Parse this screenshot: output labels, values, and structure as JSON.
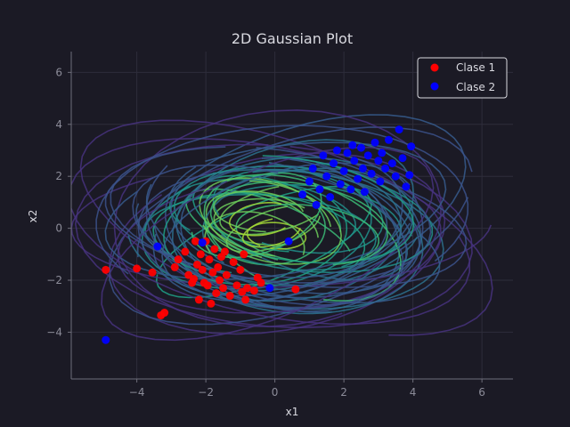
{
  "chart_data": {
    "type": "scatter",
    "title": "2D Gaussian Plot",
    "xlabel": "x1",
    "ylabel": "x2",
    "xlim": [
      -5.9,
      6.9
    ],
    "ylim": [
      -5.8,
      6.8
    ],
    "xticks": [
      "−4",
      "−2",
      "0",
      "2",
      "4",
      "6"
    ],
    "xtick_values": [
      -4,
      -2,
      0,
      2,
      4,
      6
    ],
    "yticks": [
      "−4",
      "−2",
      "0",
      "2",
      "4",
      "6"
    ],
    "ytick_values": [
      -4,
      -2,
      0,
      2,
      4,
      6
    ],
    "grid": true,
    "legend_position": "top-right",
    "series": [
      {
        "name": "Clase 1",
        "color": "#ff0000",
        "points": [
          [
            -4.9,
            -1.6
          ],
          [
            -4.0,
            -1.55
          ],
          [
            -3.55,
            -1.7
          ],
          [
            -3.3,
            -3.35
          ],
          [
            -3.2,
            -3.25
          ],
          [
            -2.9,
            -1.5
          ],
          [
            -2.8,
            -1.2
          ],
          [
            -2.6,
            -0.9
          ],
          [
            -2.5,
            -1.8
          ],
          [
            -2.4,
            -2.1
          ],
          [
            -2.35,
            -1.95
          ],
          [
            -2.3,
            -0.5
          ],
          [
            -2.25,
            -1.4
          ],
          [
            -2.2,
            -2.75
          ],
          [
            -2.15,
            -1.0
          ],
          [
            -2.1,
            -1.6
          ],
          [
            -2.05,
            -2.1
          ],
          [
            -2.0,
            -0.5
          ],
          [
            -1.95,
            -2.2
          ],
          [
            -1.9,
            -1.2
          ],
          [
            -1.85,
            -2.9
          ],
          [
            -1.8,
            -1.7
          ],
          [
            -1.75,
            -0.8
          ],
          [
            -1.7,
            -2.5
          ],
          [
            -1.65,
            -1.5
          ],
          [
            -1.6,
            -2.0
          ],
          [
            -1.55,
            -1.1
          ],
          [
            -1.5,
            -2.3
          ],
          [
            -1.45,
            -0.9
          ],
          [
            -1.4,
            -1.8
          ],
          [
            -1.3,
            -2.6
          ],
          [
            -1.2,
            -1.3
          ],
          [
            -1.1,
            -2.2
          ],
          [
            -1.0,
            -1.6
          ],
          [
            -0.95,
            -2.45
          ],
          [
            -0.9,
            -1.0
          ],
          [
            -0.85,
            -2.75
          ],
          [
            -0.8,
            -2.3
          ],
          [
            -0.6,
            -2.4
          ],
          [
            -0.5,
            -1.9
          ],
          [
            -0.4,
            -2.1
          ],
          [
            0.6,
            -2.35
          ]
        ]
      },
      {
        "name": "Clase 2",
        "color": "#0000ff",
        "points": [
          [
            -4.9,
            -4.3
          ],
          [
            -3.4,
            -0.7
          ],
          [
            -2.1,
            -0.55
          ],
          [
            -0.15,
            -2.3
          ],
          [
            0.4,
            -0.5
          ],
          [
            0.8,
            1.3
          ],
          [
            1.0,
            1.8
          ],
          [
            1.1,
            2.3
          ],
          [
            1.2,
            0.9
          ],
          [
            1.3,
            1.5
          ],
          [
            1.4,
            2.8
          ],
          [
            1.5,
            2.0
          ],
          [
            1.6,
            1.2
          ],
          [
            1.7,
            2.5
          ],
          [
            1.8,
            3.0
          ],
          [
            1.9,
            1.7
          ],
          [
            2.0,
            2.2
          ],
          [
            2.1,
            2.9
          ],
          [
            2.2,
            1.5
          ],
          [
            2.25,
            3.2
          ],
          [
            2.3,
            2.6
          ],
          [
            2.4,
            1.9
          ],
          [
            2.5,
            3.1
          ],
          [
            2.55,
            2.3
          ],
          [
            2.6,
            1.4
          ],
          [
            2.7,
            2.8
          ],
          [
            2.8,
            2.1
          ],
          [
            2.9,
            3.3
          ],
          [
            3.0,
            2.6
          ],
          [
            3.05,
            1.8
          ],
          [
            3.1,
            2.9
          ],
          [
            3.2,
            2.3
          ],
          [
            3.3,
            3.4
          ],
          [
            3.4,
            2.5
          ],
          [
            3.5,
            2.0
          ],
          [
            3.6,
            3.8
          ],
          [
            3.7,
            2.7
          ],
          [
            3.8,
            1.6
          ],
          [
            3.95,
            3.15
          ],
          [
            3.9,
            2.05
          ]
        ]
      }
    ]
  }
}
